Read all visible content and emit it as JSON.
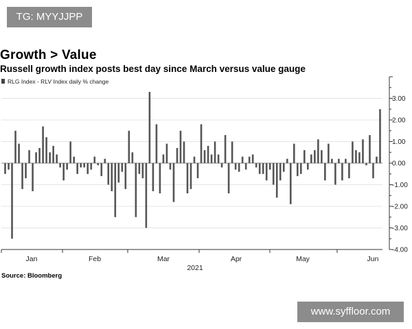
{
  "watermarks": {
    "top_badge": "TG: MYYJJPP",
    "bottom_badge": "www.syffloor.com"
  },
  "headline": "Growth > Value",
  "subheadline": "Russell growth index posts best day since March versus value gauge",
  "source": "Source: Bloomberg",
  "colors": {
    "bar": "#555555",
    "zero_line": "#888888",
    "grid": "#e4e4e4",
    "axis": "#333333",
    "badge_bg": "#8c8c8c"
  },
  "chart_data": {
    "type": "bar",
    "legend": "RLG Index - RLV Index daily % change",
    "legend_placement": "top-left",
    "y_axis_side": "right",
    "ylim": [
      -4,
      4
    ],
    "yticks": [
      "3.00",
      "2.00",
      "1.00",
      "0.00",
      "-1.00",
      "-2.00",
      "-3.00",
      "-4.00"
    ],
    "ytick_values": [
      3,
      2,
      1,
      0,
      -1,
      -2,
      -3,
      -4
    ],
    "grid": true,
    "x_tick_labels": [
      "Jan",
      "Feb",
      "Mar",
      "Apr",
      "May",
      "Jun"
    ],
    "x_year_label": "2021",
    "series": [
      {
        "values": [
          -0.5,
          -0.3,
          -3.5,
          1.5,
          0.9,
          -1.2,
          -0.7,
          0.6,
          -1.3,
          0.5,
          0.7,
          1.7,
          1.2,
          0.5,
          0.8,
          0.4,
          -0.2,
          -0.8,
          -0.3,
          1.0,
          0.3,
          -0.5,
          -0.2,
          -0.2,
          -0.5,
          -0.3,
          0.3,
          -0.1,
          -0.6,
          0.2,
          -1.0,
          -1.3,
          -2.5,
          -0.9,
          -0.4,
          -1.2,
          1.5,
          0.5,
          -2.5,
          -0.5,
          -0.7,
          -3.0,
          3.3,
          -1.3,
          1.8,
          -1.4,
          0.4,
          0.9,
          -0.3,
          -1.8,
          0.7,
          1.5,
          1.0,
          -1.4,
          -1.2,
          0.3,
          -0.7,
          1.8,
          0.6,
          0.8,
          0.4,
          1.0,
          0.4,
          -0.2,
          1.3,
          -1.4,
          1.0,
          -0.3,
          -0.4,
          0.3,
          -0.3,
          0.3,
          0.4,
          -0.2,
          -0.5,
          -0.5,
          -0.8,
          -0.3,
          -1.0,
          -1.6,
          -0.8,
          -0.4,
          0.2,
          -1.9,
          0.9,
          -0.6,
          -0.5,
          0.6,
          -0.3,
          0.4,
          0.6,
          1.1,
          0.6,
          -0.8,
          0.9,
          0.2,
          -1.0,
          0.2,
          -0.8,
          0.2,
          -0.7,
          1.0,
          0.6,
          0.5,
          1.1,
          -0.1,
          1.3,
          -0.7,
          0.3,
          2.5
        ]
      }
    ]
  }
}
